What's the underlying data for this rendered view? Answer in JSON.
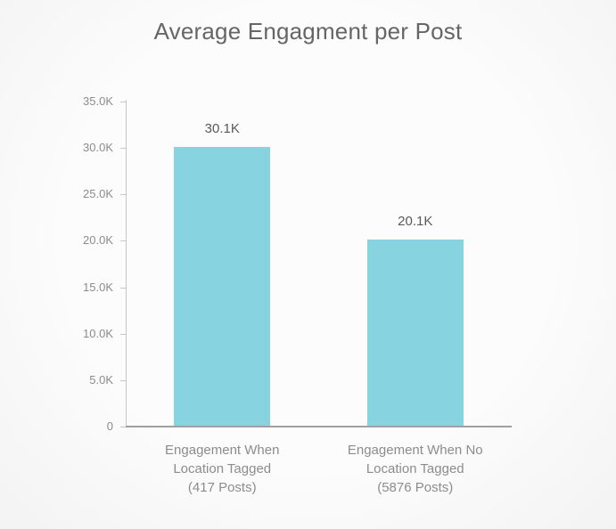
{
  "page": {
    "background": "#fbfbfb"
  },
  "chart_data": {
    "type": "bar",
    "title": "Average Engagment per Post",
    "categories": [
      [
        "Engagement When",
        "Location Tagged",
        "(417 Posts)"
      ],
      [
        "Engagement When No",
        "Location Tagged",
        "(5876 Posts)"
      ]
    ],
    "values": [
      30100,
      20100
    ],
    "value_labels": [
      "30.1K",
      "20.1K"
    ],
    "y_ticks": [
      {
        "label": "35.0K",
        "value": 35000
      },
      {
        "label": "30.0K",
        "value": 30000
      },
      {
        "label": "25.0K",
        "value": 25000
      },
      {
        "label": "20.0K",
        "value": 20000
      },
      {
        "label": "15.0K",
        "value": 15000
      },
      {
        "label": "10.0K",
        "value": 10000
      },
      {
        "label": "5.0K",
        "value": 5000
      },
      {
        "label": "0",
        "value": 0
      }
    ],
    "ylim": [
      0,
      35000
    ],
    "xlabel": "",
    "ylabel": "",
    "grid": false,
    "legend": false,
    "bar_color": "#87d3e0",
    "colors": {
      "title": "#666666",
      "value_label": "#595959",
      "axis_label": "#8c8c8c",
      "axis_line": "#c6c6c6",
      "baseline": "#a0a0a0"
    }
  }
}
